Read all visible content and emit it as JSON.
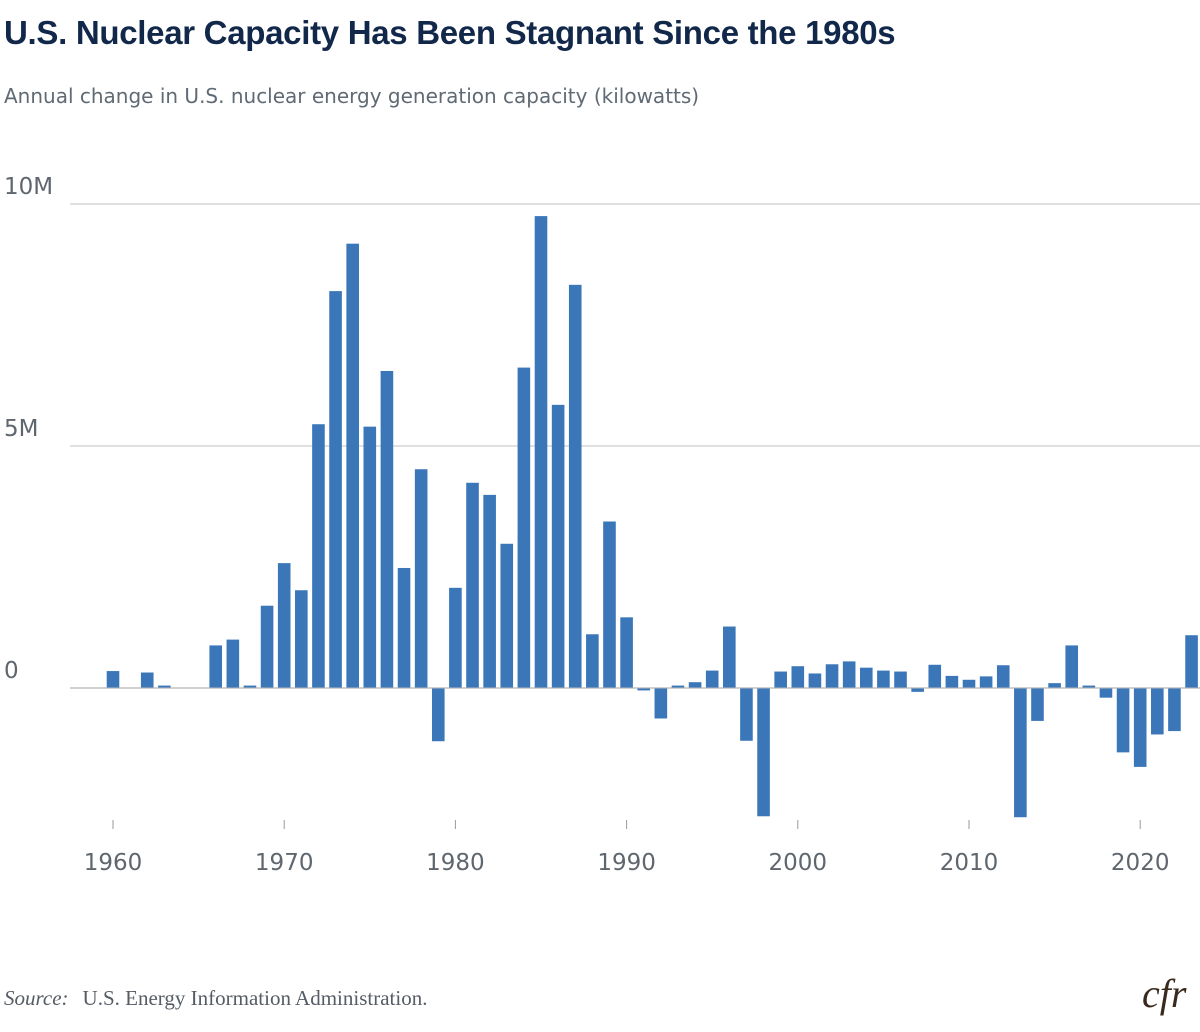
{
  "header": {
    "title": "U.S. Nuclear Capacity Has Been Stagnant Since the 1980s",
    "subtitle": "Annual change in U.S. nuclear energy generation capacity (kilowatts)"
  },
  "footer": {
    "source_label": "Source:",
    "source_text": "U.S. Energy Information Administration.",
    "logo_text": "cfr"
  },
  "colors": {
    "bar": "#3a76b8",
    "grid": "#d6d6d6",
    "axis_text": "#5f666d",
    "title": "#12284a"
  },
  "chart_data": {
    "type": "bar",
    "title": "U.S. Nuclear Capacity Has Been Stagnant Since the 1980s",
    "subtitle": "Annual change in U.S. nuclear energy generation capacity (kilowatts)",
    "xlabel": "",
    "ylabel": "",
    "ylim": [
      -2700000,
      10000000
    ],
    "grid": true,
    "y_ticks": [
      {
        "value": 0,
        "label": "0"
      },
      {
        "value": 5000000,
        "label": "5M"
      },
      {
        "value": 10000000,
        "label": "10M"
      }
    ],
    "x_ticks": [
      1960,
      1970,
      1980,
      1990,
      2000,
      2010,
      2020
    ],
    "series": [
      {
        "name": "Annual change in capacity (kW)",
        "x": [
          1958,
          1959,
          1960,
          1961,
          1962,
          1963,
          1964,
          1965,
          1966,
          1967,
          1968,
          1969,
          1970,
          1971,
          1972,
          1973,
          1974,
          1975,
          1976,
          1977,
          1978,
          1979,
          1980,
          1981,
          1982,
          1983,
          1984,
          1985,
          1986,
          1987,
          1988,
          1989,
          1990,
          1991,
          1992,
          1993,
          1994,
          1995,
          1996,
          1997,
          1998,
          1999,
          2000,
          2001,
          2002,
          2003,
          2004,
          2005,
          2006,
          2007,
          2008,
          2009,
          2010,
          2011,
          2012,
          2013,
          2014,
          2015,
          2016,
          2017,
          2018,
          2019,
          2020,
          2021,
          2022,
          2023
        ],
        "values": [
          0,
          0,
          350000,
          0,
          320000,
          50000,
          0,
          0,
          880000,
          1000000,
          50000,
          1700000,
          2580000,
          2020000,
          5450000,
          8200000,
          9180000,
          5400000,
          6550000,
          2480000,
          4520000,
          -1100000,
          2070000,
          4240000,
          3990000,
          2980000,
          6620000,
          9750000,
          5850000,
          8330000,
          1110000,
          3440000,
          1460000,
          -50000,
          -630000,
          50000,
          120000,
          360000,
          1270000,
          -1090000,
          -2650000,
          340000,
          450000,
          300000,
          490000,
          550000,
          420000,
          360000,
          340000,
          -80000,
          480000,
          250000,
          170000,
          240000,
          470000,
          -2670000,
          -680000,
          100000,
          880000,
          50000,
          -200000,
          -1330000,
          -1630000,
          -960000,
          -890000,
          1090000
        ]
      }
    ]
  }
}
